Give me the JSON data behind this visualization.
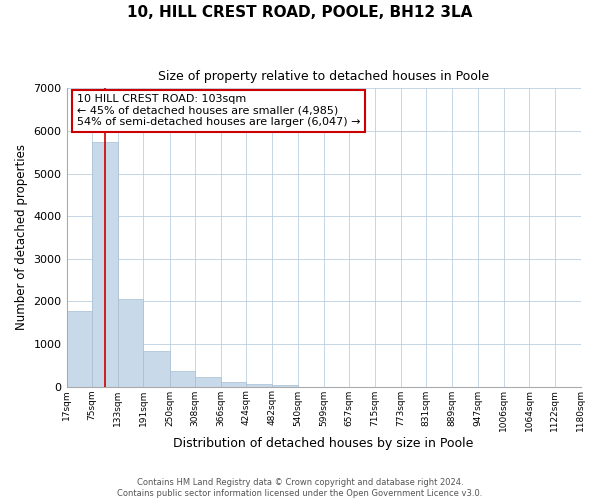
{
  "title": "10, HILL CREST ROAD, POOLE, BH12 3LA",
  "subtitle": "Size of property relative to detached houses in Poole",
  "xlabel": "Distribution of detached houses by size in Poole",
  "ylabel": "Number of detached properties",
  "bar_color": "#c8d9ea",
  "bar_edge_color": "#a8bfd4",
  "vline_color": "#cc0000",
  "vline_x": 103,
  "annotation_lines": [
    "10 HILL CREST ROAD: 103sqm",
    "← 45% of detached houses are smaller (4,985)",
    "54% of semi-detached houses are larger (6,047) →"
  ],
  "bin_edges": [
    17,
    75,
    133,
    191,
    250,
    308,
    366,
    424,
    482,
    540,
    599,
    657,
    715,
    773,
    831,
    889,
    947,
    1006,
    1064,
    1122,
    1180
  ],
  "bin_labels": [
    "17sqm",
    "75sqm",
    "133sqm",
    "191sqm",
    "250sqm",
    "308sqm",
    "366sqm",
    "424sqm",
    "482sqm",
    "540sqm",
    "599sqm",
    "657sqm",
    "715sqm",
    "773sqm",
    "831sqm",
    "889sqm",
    "947sqm",
    "1006sqm",
    "1064sqm",
    "1122sqm",
    "1180sqm"
  ],
  "counts": [
    1780,
    5740,
    2060,
    830,
    370,
    220,
    110,
    60,
    40,
    0,
    0,
    0,
    0,
    0,
    0,
    0,
    0,
    0,
    0,
    0
  ],
  "ylim": [
    0,
    7000
  ],
  "yticks": [
    0,
    1000,
    2000,
    3000,
    4000,
    5000,
    6000,
    7000
  ],
  "footer_lines": [
    "Contains HM Land Registry data © Crown copyright and database right 2024.",
    "Contains public sector information licensed under the Open Government Licence v3.0."
  ],
  "background_color": "#ffffff",
  "grid_color": "#bccfdf"
}
